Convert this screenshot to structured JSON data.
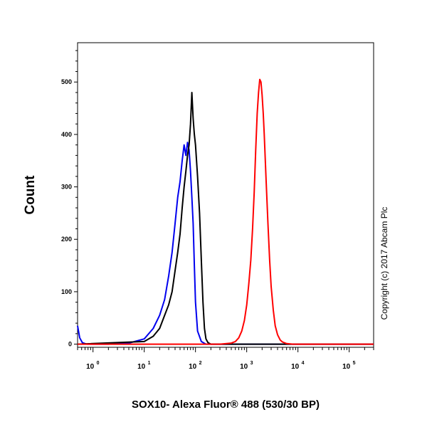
{
  "chart_data": {
    "type": "line",
    "xlabel": "SOX10- Alexa Fluor® 488 (530/30 BP)",
    "ylabel": "Count",
    "x_scale": "log",
    "xlim": [
      0.5,
      300000
    ],
    "ylim": [
      -6,
      575
    ],
    "y_ticks": [
      0,
      100,
      200,
      300,
      400,
      500
    ],
    "x_ticks": [
      {
        "base": "10",
        "exp": "0",
        "value": 1
      },
      {
        "base": "10",
        "exp": "1",
        "value": 10
      },
      {
        "base": "10",
        "exp": "2",
        "value": 100
      },
      {
        "base": "10",
        "exp": "3",
        "value": 1000
      },
      {
        "base": "10",
        "exp": "4",
        "value": 10000
      },
      {
        "base": "10",
        "exp": "5",
        "value": 100000
      }
    ],
    "annotation": "Copyright (c) 2017 Abcam Plc",
    "legend": "none",
    "grid": false,
    "series": [
      {
        "color": "#0000ee",
        "x": [
          0.5,
          0.55,
          0.62,
          0.75,
          1,
          2,
          5,
          10,
          15,
          20,
          25,
          30,
          35,
          40,
          45,
          50,
          55,
          60,
          65,
          70,
          75,
          80,
          85,
          90,
          95,
          100,
          110,
          130,
          160,
          200,
          1000,
          300000
        ],
        "y": [
          35,
          12,
          3,
          0,
          0,
          0,
          2,
          10,
          30,
          55,
          85,
          130,
          175,
          230,
          280,
          310,
          350,
          380,
          360,
          385,
          370,
          330,
          280,
          230,
          150,
          80,
          25,
          5,
          0,
          0,
          0,
          0
        ]
      },
      {
        "color": "#000000",
        "x": [
          0.5,
          10,
          15,
          20,
          25,
          30,
          35,
          40,
          45,
          50,
          55,
          60,
          65,
          70,
          75,
          80,
          85,
          90,
          95,
          100,
          110,
          120,
          130,
          140,
          150,
          160,
          175,
          200,
          1000,
          300000
        ],
        "y": [
          0,
          5,
          15,
          30,
          55,
          75,
          100,
          140,
          175,
          210,
          260,
          300,
          330,
          360,
          380,
          420,
          480,
          430,
          400,
          380,
          320,
          250,
          160,
          80,
          30,
          10,
          3,
          0,
          0,
          0
        ]
      },
      {
        "color": "#ff0000",
        "x": [
          0.5,
          300,
          500,
          600,
          700,
          800,
          900,
          1000,
          1100,
          1200,
          1300,
          1400,
          1500,
          1600,
          1700,
          1800,
          1900,
          2000,
          2100,
          2200,
          2400,
          2600,
          2800,
          3000,
          3300,
          3600,
          4000,
          4500,
          5000,
          6000,
          8000,
          300000
        ],
        "y": [
          0,
          0,
          2,
          5,
          12,
          25,
          45,
          75,
          115,
          160,
          220,
          290,
          370,
          440,
          480,
          505,
          500,
          475,
          440,
          400,
          310,
          230,
          160,
          110,
          65,
          35,
          18,
          8,
          4,
          1,
          0,
          0
        ]
      }
    ]
  }
}
